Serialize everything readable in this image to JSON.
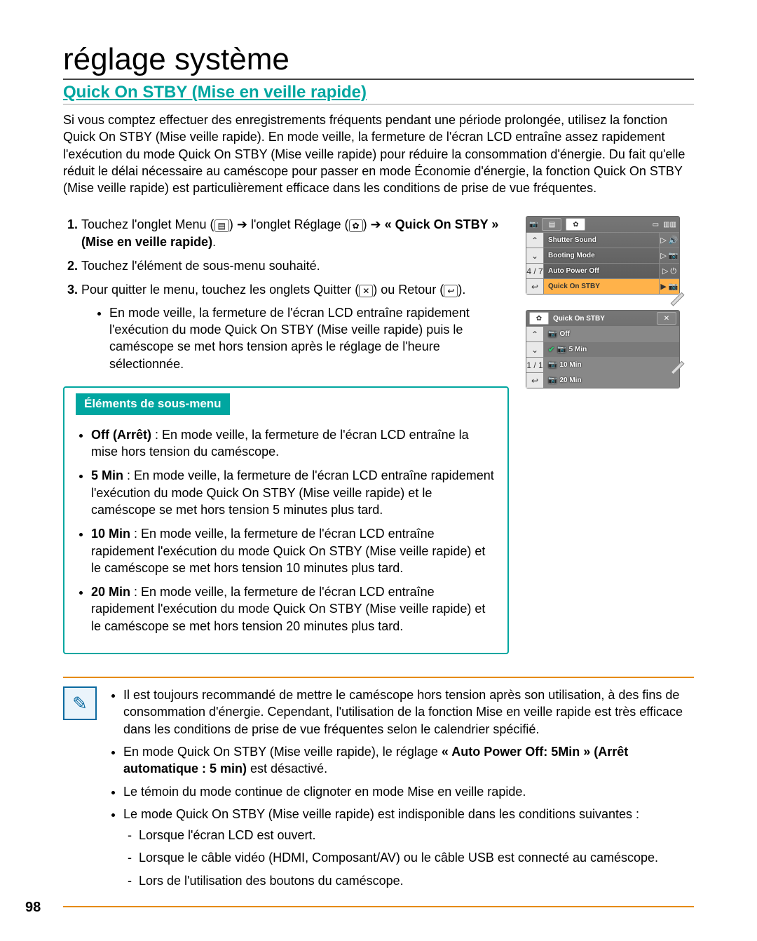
{
  "page_number": "98",
  "title": "réglage système",
  "subtitle": "Quick On STBY (Mise en veille rapide)",
  "intro": "Si vous comptez effectuer des enregistrements fréquents pendant une période prolongée, utilisez la fonction Quick On STBY (Mise veille rapide). En mode veille, la fermeture de l'écran LCD entraîne assez rapidement l'exécution du mode Quick On STBY (Mise veille rapide) pour réduire la consommation d'énergie. Du fait qu'elle réduit le délai nécessaire au caméscope pour passer en mode Économie d'énergie, la fonction Quick On STBY (Mise veille rapide) est particulièrement efficace dans les conditions de prise de vue fréquentes.",
  "steps": {
    "s1a": "Touchez l'onglet Menu (",
    "s1b": ") ➔ l'onglet Réglage (",
    "s1c": ") ➔ ",
    "s1bold": "« Quick On STBY » (Mise en veille rapide)",
    "s1d": ".",
    "s2": "Touchez l'élément de sous-menu souhaité.",
    "s3a": "Pour quitter le menu, touchez les onglets Quitter (",
    "s3b": ") ou Retour (",
    "s3c": ").",
    "s3bullet": "En mode veille, la fermeture de l'écran LCD entraîne rapidement l'exécution du mode Quick On STBY (Mise veille rapide) puis le caméscope se met hors tension après le réglage de l'heure sélectionnée."
  },
  "icons": {
    "menu": "▤",
    "settings": "✿",
    "exit": "✕",
    "back": "↩"
  },
  "submenu": {
    "title": "Éléments de sous-menu",
    "items": [
      {
        "label": "Off (Arrêt)",
        "text": " : En mode veille, la fermeture de l'écran LCD entraîne la mise hors tension du caméscope."
      },
      {
        "label": "5 Min",
        "text": " : En mode veille, la fermeture de l'écran LCD entraîne rapidement l'exécution du mode Quick On STBY (Mise veille rapide) et le caméscope se met hors tension 5 minutes plus tard."
      },
      {
        "label": "10 Min",
        "text": " : En mode veille, la fermeture de l'écran LCD entraîne rapidement l'exécution du mode Quick On STBY (Mise veille rapide) et le caméscope se met hors tension 10 minutes plus tard."
      },
      {
        "label": "20 Min",
        "text": " : En mode veille, la fermeture de l'écran LCD entraîne rapidement l'exécution du mode Quick On STBY (Mise veille rapide) et le caméscope se met hors tension 20 minutes plus tard."
      }
    ]
  },
  "lcd1": {
    "page_indicator": "4 / 7",
    "rows": [
      {
        "label": "Shutter Sound"
      },
      {
        "label": "Booting Mode"
      },
      {
        "label": "Auto Power Off"
      },
      {
        "label": "Quick On STBY",
        "highlight": true
      }
    ]
  },
  "lcd2": {
    "header": "Quick On STBY",
    "page_indicator": "1 / 1",
    "options": [
      "Off",
      "5 Min",
      "10 Min",
      "20 Min"
    ],
    "selected_index": 1
  },
  "notes": {
    "items": [
      "Il est toujours recommandé de mettre le caméscope hors tension après son utilisation, à des fins de consommation d'énergie. Cependant, l'utilisation de la fonction Mise en veille rapide est très efficace dans les conditions de prise de vue fréquentes selon le calendrier spécifié.",
      "",
      "Le témoin du mode continue de clignoter en mode Mise en veille rapide.",
      "Le mode Quick On STBY (Mise veille rapide) est indisponible dans les conditions suivantes :"
    ],
    "item2_a": "En mode Quick On STBY (Mise veille rapide), le réglage ",
    "item2_bold": "« Auto Power Off: 5Min » (Arrêt automatique : 5 min)",
    "item2_b": " est désactivé.",
    "sub": [
      "Lorsque l'écran LCD est ouvert.",
      "Lorsque le câble vidéo (HDMI, Composant/AV) ou le câble USB est connecté au caméscope.",
      "Lors de l'utilisation des boutons du caméscope."
    ]
  },
  "colors": {
    "accent": "#00a6a0",
    "orange": "#e68a00",
    "highlight": "#ffb24a"
  }
}
